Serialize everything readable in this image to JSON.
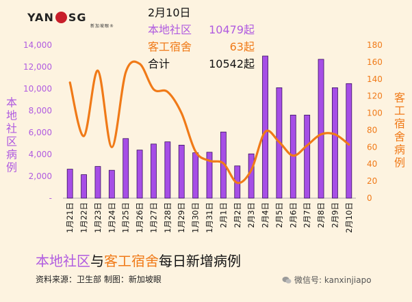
{
  "logo": {
    "text_left": "YAN",
    "text_right": "SG",
    "subtitle": "新加坡眼®"
  },
  "info": {
    "date": "2月10日",
    "local_label": "本地社区",
    "local_value": "10479起",
    "dorm_label": "客工宿舍",
    "dorm_value": "63起",
    "total_label": "合计",
    "total_value": "10542起"
  },
  "footer": {
    "title_local": "本地社区",
    "title_and": "与",
    "title_dorm": "客工宿舍",
    "title_rest": "每日新增病例",
    "source": "资料来源：卫生部    制图：新加坡眼",
    "wechat": "微信号: kanxinjiapo"
  },
  "colors": {
    "local": "#b05be0",
    "dorm": "#f07a18",
    "bar_fill": "#a64ee6",
    "bg": "#fdf3e0"
  },
  "chart_data": {
    "type": "bar+line",
    "categories": [
      "1月21日",
      "1月22日",
      "1月23日",
      "1月24日",
      "1月25日",
      "1月26日",
      "1月27日",
      "1月28日",
      "1月29日",
      "1月30日",
      "1月31日",
      "2月1日",
      "2月2日",
      "2月3日",
      "2月4日",
      "2月5日",
      "2月6日",
      "2月7日",
      "2月8日",
      "2月9日",
      "2月10日"
    ],
    "left_axis": {
      "label": "本地社区病例",
      "ylim": [
        0,
        14000
      ],
      "ticks": [
        "-",
        "2,000",
        "4,000",
        "6,000",
        "8,000",
        "10,000",
        "12,000",
        "14,000"
      ]
    },
    "right_axis": {
      "label": "客工宿舍病例",
      "ylim": [
        0,
        180
      ],
      "ticks": [
        "0",
        "20",
        "40",
        "60",
        "80",
        "100",
        "120",
        "140",
        "160",
        "180"
      ]
    },
    "series": [
      {
        "name": "本地社区",
        "kind": "bar",
        "axis": "left",
        "values": [
          2650,
          2150,
          2900,
          2550,
          5450,
          4400,
          4950,
          5150,
          4850,
          4150,
          4200,
          6050,
          2950,
          4050,
          13000,
          10100,
          7600,
          7600,
          12700,
          10100,
          10479
        ]
      },
      {
        "name": "客工宿舍",
        "kind": "line",
        "axis": "right",
        "values": [
          136,
          73,
          150,
          60,
          148,
          158,
          128,
          125,
          100,
          55,
          44,
          41,
          18,
          33,
          78,
          66,
          50,
          62,
          75,
          75,
          63
        ]
      }
    ],
    "grid": false,
    "legend": "top-center text block"
  }
}
